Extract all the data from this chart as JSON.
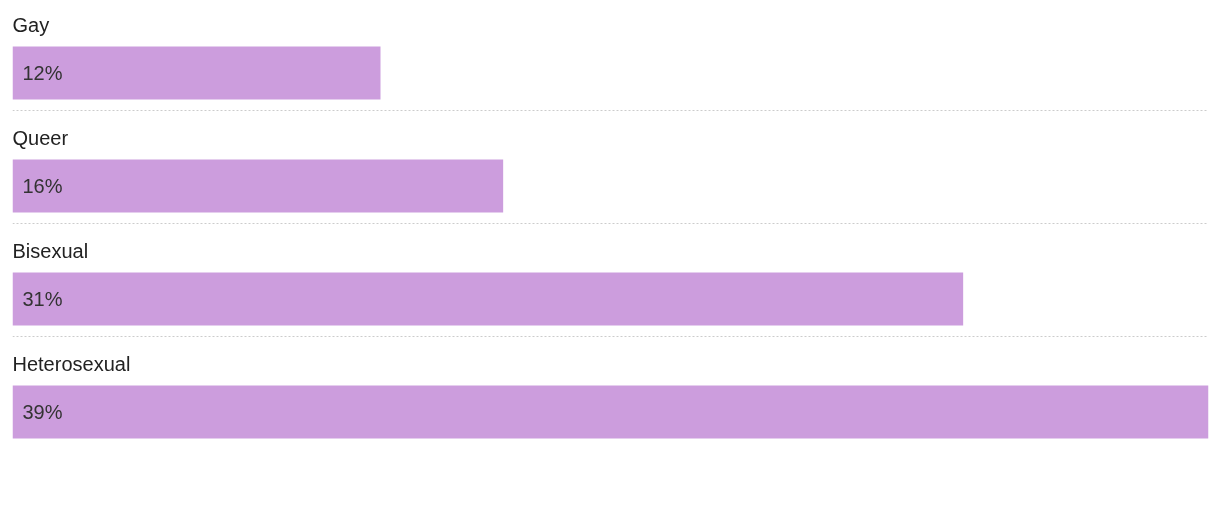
{
  "chart_data": {
    "type": "bar",
    "orientation": "horizontal",
    "categories": [
      "Gay",
      "Queer",
      "Bisexual",
      "Heterosexual"
    ],
    "values": [
      12,
      16,
      31,
      39
    ],
    "value_labels": [
      "12%",
      "16%",
      "31%",
      "39%"
    ],
    "color": "#cc9ddd"
  }
}
